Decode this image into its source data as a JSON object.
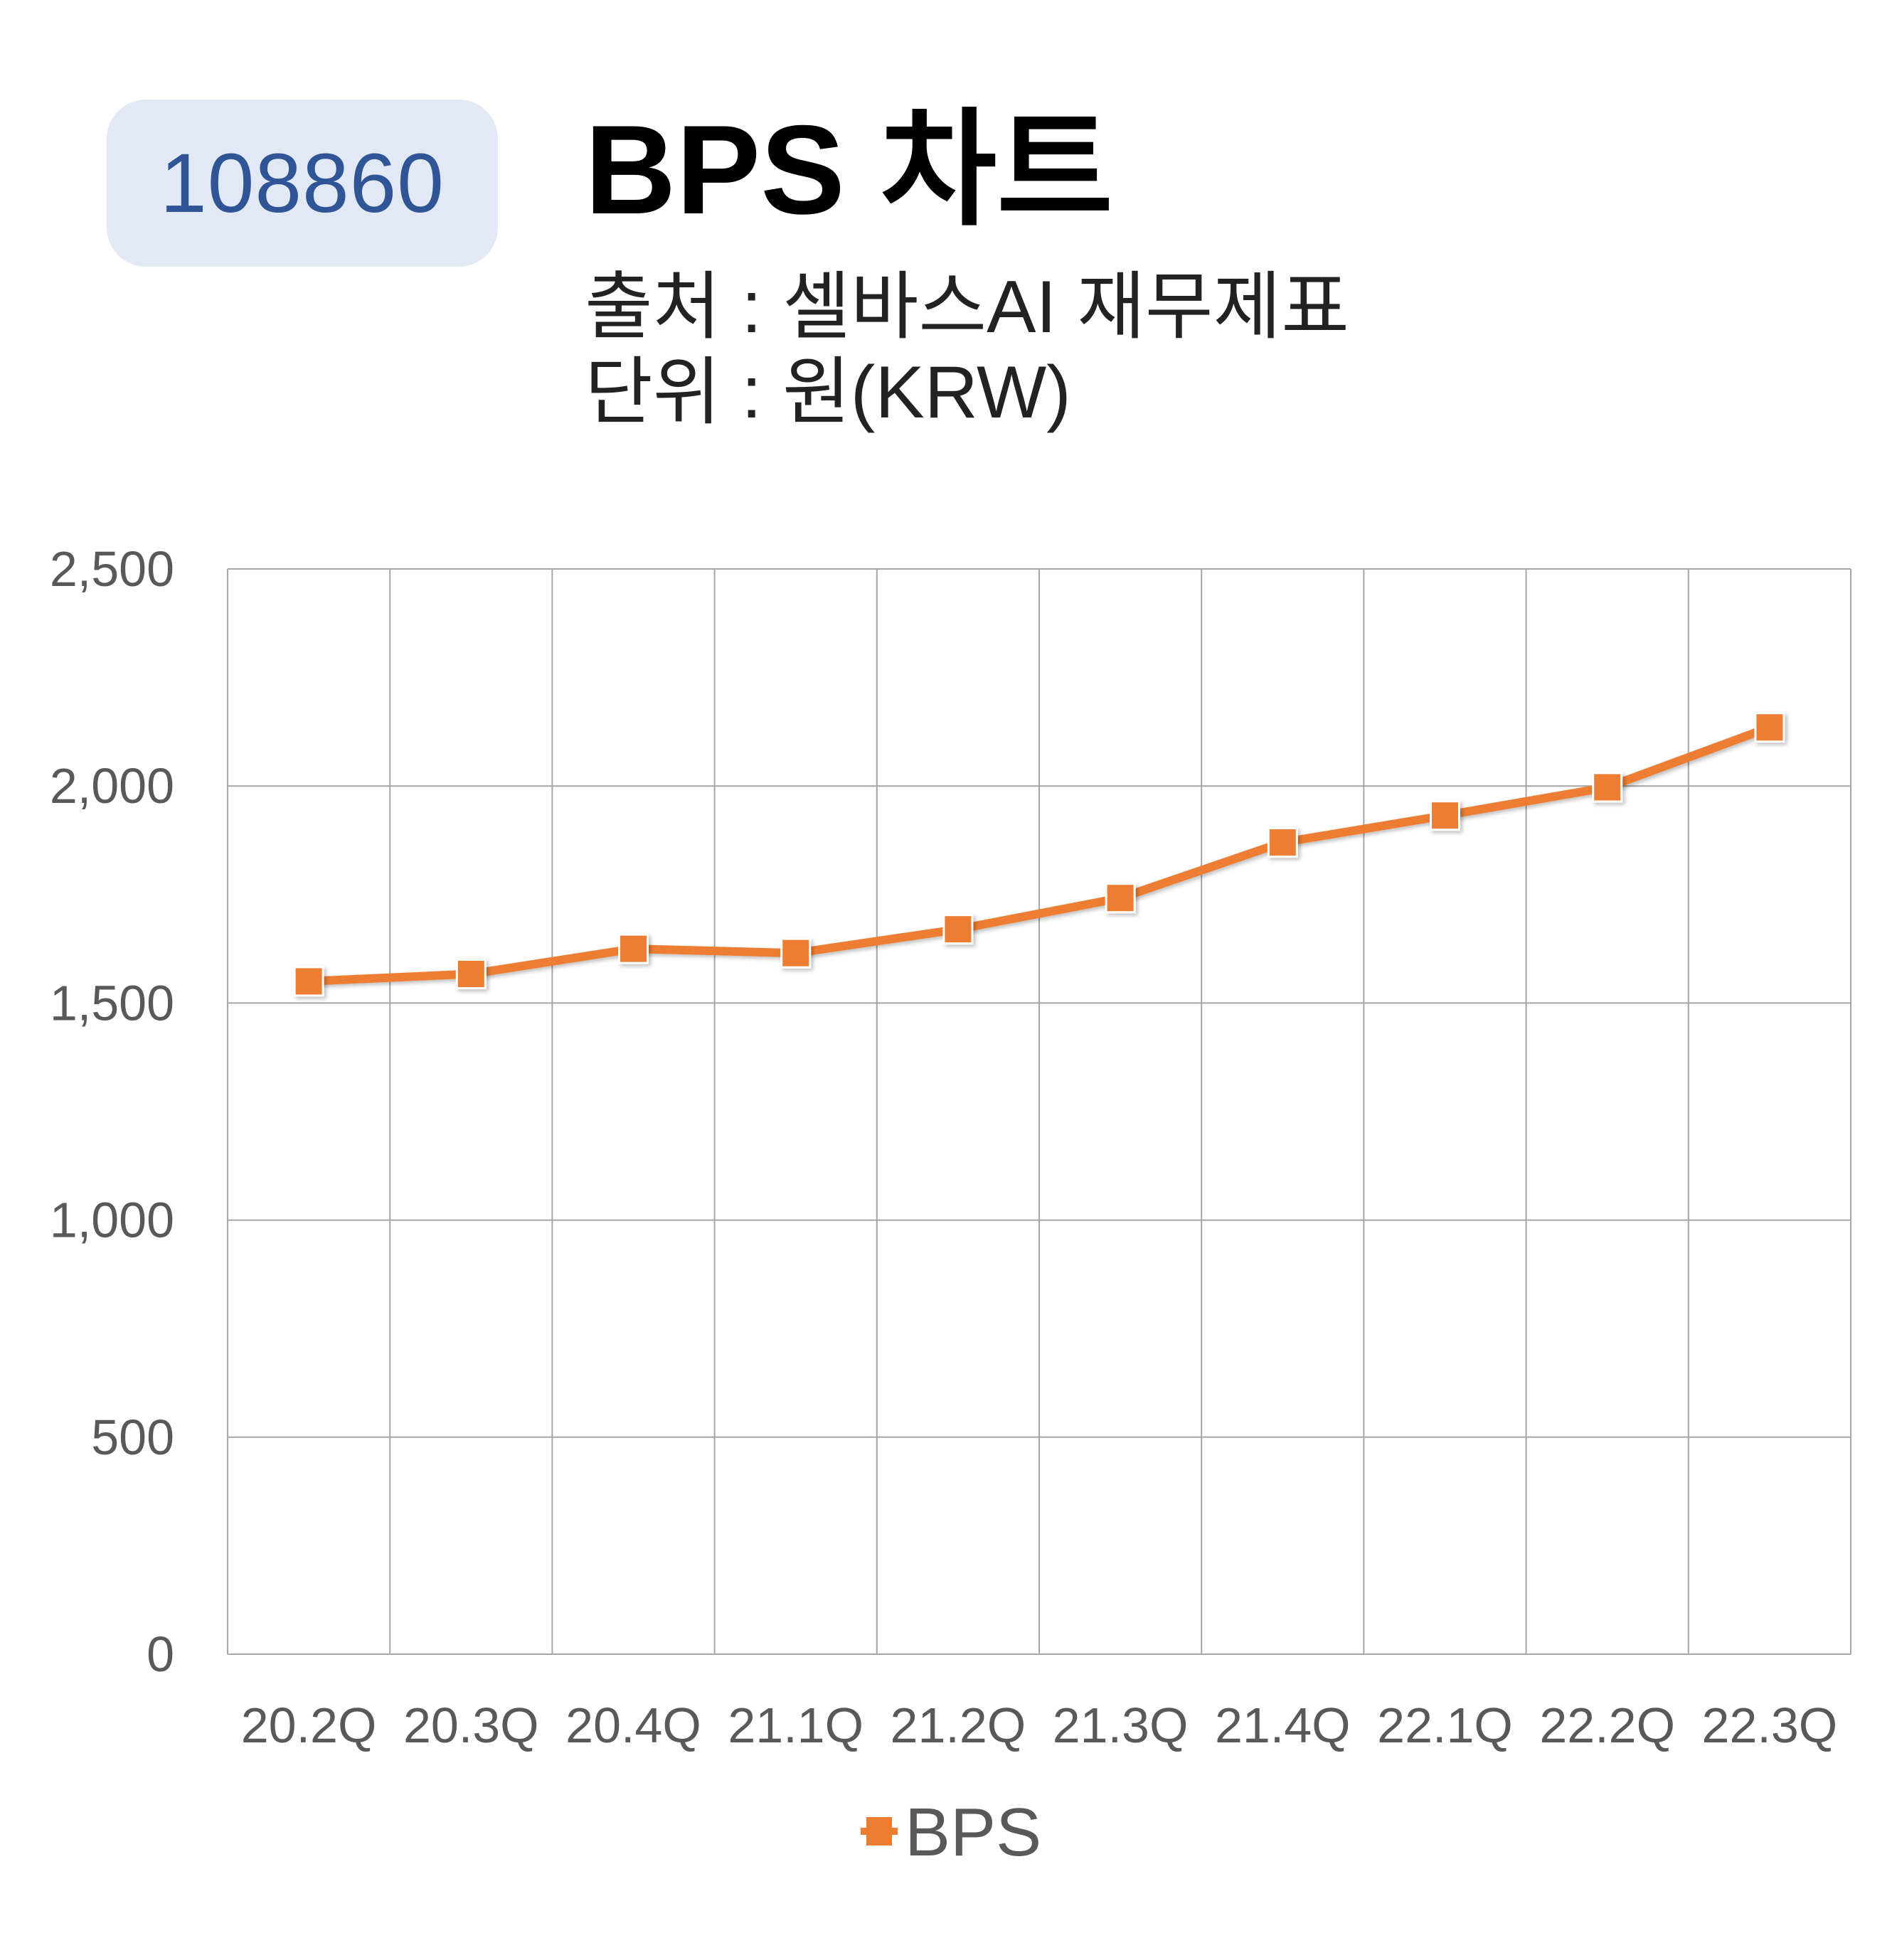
{
  "badge": {
    "code": "108860"
  },
  "header": {
    "title": "BPS 차트",
    "source_line": "출처 : 셀바스AI 재무제표",
    "unit_line": "단위 : 원(KRW)"
  },
  "colors": {
    "series": "#ed7d31",
    "badge_bg": "#e3e9f4",
    "badge_text": "#2f5597",
    "grid": "#a6a6a6"
  },
  "chart_data": {
    "type": "line",
    "title": "BPS 차트",
    "xlabel": "",
    "ylabel": "",
    "categories": [
      "20.2Q",
      "20.3Q",
      "20.4Q",
      "21.1Q",
      "21.2Q",
      "21.3Q",
      "21.4Q",
      "22.1Q",
      "22.2Q",
      "22.3Q"
    ],
    "series": [
      {
        "name": "BPS",
        "marker": "square",
        "values": [
          1550,
          1567,
          1625,
          1615,
          1670,
          1742,
          1870,
          1932,
          1997,
          2135
        ]
      }
    ],
    "ylim": [
      0,
      2500
    ],
    "yticks": [
      0,
      500,
      1000,
      1500,
      2000,
      2500
    ],
    "ytick_labels": [
      "0",
      "500",
      "1,000",
      "1,500",
      "2,000",
      "2,500"
    ],
    "grid": true,
    "legend": "bottom-center"
  }
}
